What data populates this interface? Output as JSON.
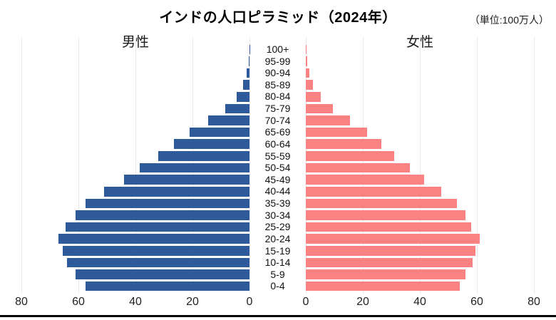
{
  "page": {
    "title": "インドの人口ピラミッド（2024年）",
    "unit_label": "（単位:100万人）"
  },
  "colors": {
    "male_bar": "#2e5a9b",
    "female_bar": "#fa8282",
    "gridline": "#e9e9e9",
    "baseline": "#000000",
    "text": "#1a1a1a"
  },
  "chart_data": {
    "type": "bar",
    "subtype": "population_pyramid",
    "title": "インドの人口ピラミッド（2024年）",
    "unit": "100万人",
    "grid": true,
    "categories_bottom_to_top": [
      "0-4",
      "5-9",
      "10-14",
      "15-19",
      "20-24",
      "25-29",
      "30-34",
      "35-39",
      "40-44",
      "45-49",
      "50-54",
      "55-59",
      "60-64",
      "65-69",
      "70-74",
      "75-79",
      "80-84",
      "85-89",
      "90-94",
      "95-99",
      "100+"
    ],
    "series": [
      {
        "name": "男性",
        "side": "left",
        "color": "#2e5a9b",
        "values": [
          57.5,
          61,
          64,
          65.5,
          67,
          64.5,
          61,
          57.5,
          51,
          44,
          38.5,
          32,
          26.5,
          21,
          14.5,
          8.5,
          4.5,
          2.2,
          1.0,
          0.35,
          0.08
        ]
      },
      {
        "name": "女性",
        "side": "right",
        "color": "#fa8282",
        "values": [
          54,
          56,
          58.5,
          59.5,
          61,
          58,
          56,
          53,
          47.5,
          41.5,
          36.5,
          31,
          26.5,
          21.5,
          15.5,
          9.5,
          5.3,
          2.6,
          1.3,
          0.4,
          0.1
        ]
      }
    ],
    "x_axis": {
      "left_ticks": [
        80,
        60,
        40,
        20,
        0
      ],
      "right_ticks": [
        0,
        20,
        40,
        60,
        80
      ],
      "max": 80
    }
  }
}
